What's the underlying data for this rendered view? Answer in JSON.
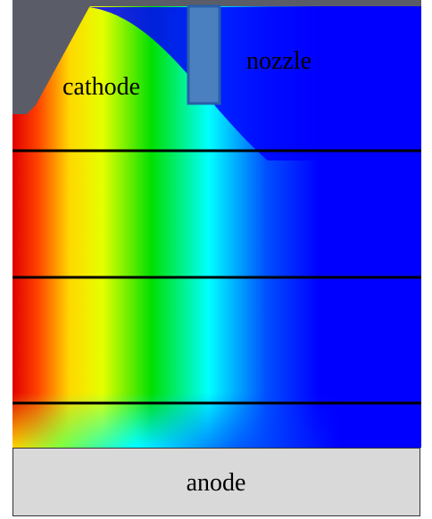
{
  "labels": {
    "cathode": "cathode",
    "nozzle": "nozzle",
    "anode": "anode"
  }
}
